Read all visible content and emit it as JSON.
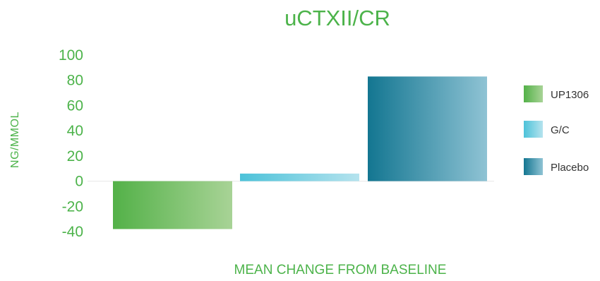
{
  "chart_data": {
    "type": "bar",
    "title": "uCTXII/CR",
    "xlabel": "MEAN CHANGE FROM BASELINE",
    "ylabel": "NG/MMOL",
    "ylim": [
      -40,
      100
    ],
    "yticks": [
      100,
      80,
      60,
      40,
      20,
      0,
      -20,
      -40
    ],
    "ytick_labels": [
      "100",
      "80",
      "60",
      "40",
      "20",
      "0",
      "-20",
      "-40"
    ],
    "legend_position": "right",
    "grid": false,
    "series": [
      {
        "name": "UP1306",
        "value": -38,
        "colors": [
          "#53b148",
          "#a8d396"
        ]
      },
      {
        "name": "G/C",
        "value": 6,
        "colors": [
          "#4cc2d9",
          "#b5e3ee"
        ]
      },
      {
        "name": "Placebo",
        "value": 83,
        "colors": [
          "#137691",
          "#8fc3d4"
        ]
      }
    ]
  }
}
